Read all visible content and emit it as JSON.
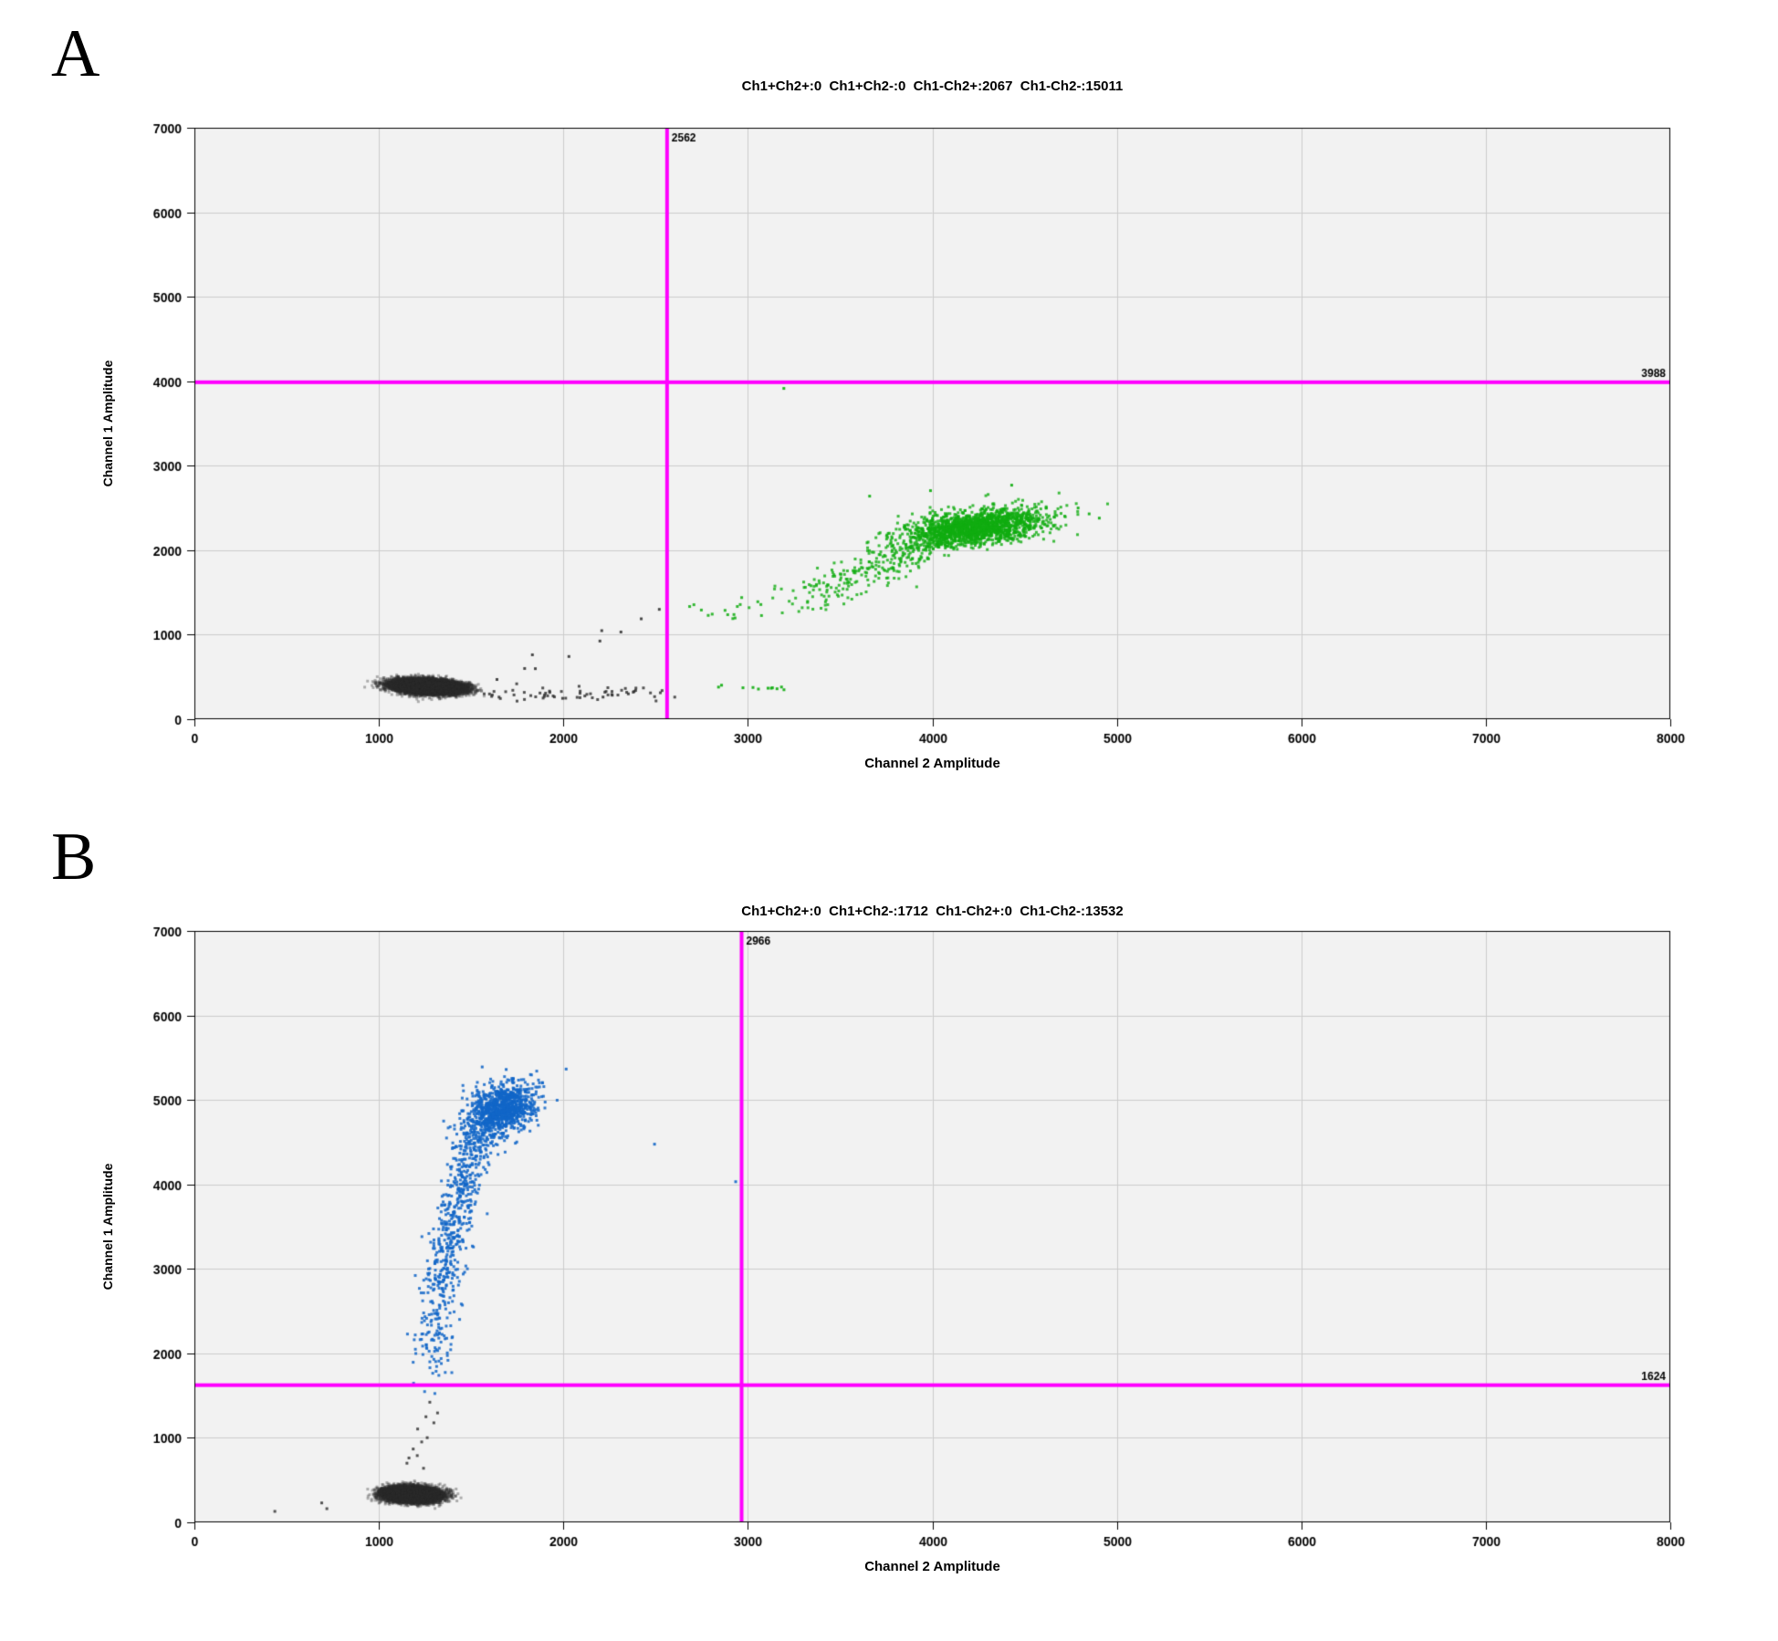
{
  "figure": {
    "panel_a_letter": "A",
    "panel_b_letter": "B"
  },
  "chart_data": [
    {
      "type": "scatter",
      "panel": "A",
      "title": "Ch1+Ch2+:0  Ch1+Ch2-:0  Ch1-Ch2+:2067  Ch1-Ch2-:15011",
      "xlabel": "Channel 2 Amplitude",
      "ylabel": "Channel 1 Amplitude",
      "xlim": [
        0,
        8000
      ],
      "ylim": [
        0,
        7000
      ],
      "xticks": [
        0,
        1000,
        2000,
        3000,
        4000,
        5000,
        6000,
        7000,
        8000
      ],
      "yticks": [
        0,
        1000,
        2000,
        3000,
        4000,
        5000,
        6000,
        7000
      ],
      "grid": true,
      "plot_bg": "#f2f2f2",
      "grid_color": "#cccccc",
      "threshold_color": "#ff00ff",
      "threshold_x": {
        "value": 2562,
        "label": "2562"
      },
      "threshold_y": {
        "value": 3988,
        "label": "3988"
      },
      "counts": {
        "Ch1+Ch2+": 0,
        "Ch1+Ch2-": 0,
        "Ch1-Ch2+": 2067,
        "Ch1-Ch2-": 15011
      },
      "series": [
        {
          "name": "ch1neg-ch2neg-negative-droplets",
          "color": "#2b2b2b",
          "clusters": [
            {
              "kind": "gauss",
              "count": 14200,
              "cx": 1265,
              "cy": 385,
              "sx": 88,
              "sy": 40,
              "rho": -0.25,
              "alpha": 0.35
            },
            {
              "kind": "band",
              "count": 60,
              "p0": [
                1500,
                290
              ],
              "p2": [
                2540,
                310
              ],
              "jx": 30,
              "jy": 45,
              "alpha": 0.8
            },
            {
              "kind": "points",
              "alpha": 0.85,
              "pts": [
                [
                  1640,
                  470
                ],
                [
                  1790,
                  600
                ],
                [
                  1848,
                  598
                ],
                [
                  1832,
                  762
                ],
                [
                  2030,
                  742
                ],
                [
                  2198,
                  925
                ],
                [
                  2312,
                  1032
                ],
                [
                  2208,
                  1048
                ],
                [
                  2422,
                  1188
                ],
                [
                  2520,
                  1300
                ],
                [
                  1996,
                  247
                ],
                [
                  2215,
                  262
                ],
                [
                  2352,
                  300
                ],
                [
                  1925,
                  332
                ]
              ]
            }
          ]
        },
        {
          "name": "ch1neg-ch2pos-positive-droplets",
          "color": "#10ad10",
          "clusters": [
            {
              "kind": "gauss",
              "count": 1720,
              "cx": 4235,
              "cy": 2270,
              "sx": 195,
              "sy": 112,
              "rho": 0.45,
              "alpha": 0.8
            },
            {
              "kind": "band",
              "count": 240,
              "p0": [
                3240,
                1340
              ],
              "p1": [
                3560,
                1650
              ],
              "p2": [
                3980,
                2080
              ],
              "jx": 120,
              "jy": 90,
              "tpow": 0.75,
              "alpha": 0.8
            },
            {
              "kind": "band",
              "count": 16,
              "p0": [
                2660,
                1210
              ],
              "p2": [
                3210,
                1380
              ],
              "jx": 70,
              "jy": 70,
              "alpha": 0.85
            },
            {
              "kind": "band",
              "count": 11,
              "p0": [
                2600,
                365
              ],
              "p2": [
                3400,
                385
              ],
              "jx": 40,
              "jy": 30,
              "alpha": 0.9
            },
            {
              "kind": "points",
              "alpha": 0.9,
              "pts": [
                [
                  3195,
                  3915
                ],
                [
                  3990,
                  2705
                ],
                [
                  3660,
                  2640
                ],
                [
                  4430,
                  2770
                ],
                [
                  4850,
                  2430
                ],
                [
                  4905,
                  2380
                ],
                [
                  4790,
                  2500
                ]
              ]
            }
          ]
        }
      ]
    },
    {
      "type": "scatter",
      "panel": "B",
      "title": "Ch1+Ch2+:0  Ch1+Ch2-:1712  Ch1-Ch2+:0  Ch1-Ch2-:13532",
      "xlabel": "Channel 2 Amplitude",
      "ylabel": "Channel 1 Amplitude",
      "xlim": [
        0,
        8000
      ],
      "ylim": [
        0,
        7000
      ],
      "xticks": [
        0,
        1000,
        2000,
        3000,
        4000,
        5000,
        6000,
        7000,
        8000
      ],
      "yticks": [
        0,
        1000,
        2000,
        3000,
        4000,
        5000,
        6000,
        7000
      ],
      "grid": true,
      "plot_bg": "#f2f2f2",
      "grid_color": "#cccccc",
      "threshold_color": "#ff00ff",
      "threshold_x": {
        "value": 2966,
        "label": "2966"
      },
      "threshold_y": {
        "value": 1624,
        "label": "1624"
      },
      "counts": {
        "Ch1+Ch2+": 0,
        "Ch1+Ch2-": 1712,
        "Ch1-Ch2+": 0,
        "Ch1-Ch2-": 13532
      },
      "series": [
        {
          "name": "ch1neg-ch2neg-negative-droplets",
          "color": "#2b2b2b",
          "clusters": [
            {
              "kind": "gauss",
              "count": 12800,
              "cx": 1180,
              "cy": 330,
              "sx": 68,
              "sy": 42,
              "rho": -0.1,
              "alpha": 0.35
            },
            {
              "kind": "points",
              "alpha": 0.8,
              "pts": [
                [
                  436,
                  130
                ],
                [
                  690,
                  230
                ],
                [
                  718,
                  162
                ],
                [
                  1152,
                  700
                ],
                [
                  1208,
                  790
                ],
                [
                  1232,
                  952
                ],
                [
                  1186,
                  868
                ],
                [
                  1262,
                  1002
                ],
                [
                  1298,
                  1178
                ],
                [
                  1276,
                  1422
                ],
                [
                  1318,
                  1295
                ],
                [
                  1242,
                  640
                ],
                [
                  1163,
                  762
                ],
                [
                  1210,
                  1105
                ],
                [
                  1255,
                  1250
                ]
              ]
            }
          ]
        },
        {
          "name": "ch1pos-ch2neg-positive-droplets",
          "color": "#1266c8",
          "clusters": [
            {
              "kind": "gauss",
              "count": 1020,
              "cx": 1662,
              "cy": 4890,
              "sx": 92,
              "sy": 148,
              "rho": 0.3,
              "alpha": 0.85
            },
            {
              "kind": "band",
              "count": 640,
              "p0": [
                1282,
                1660
              ],
              "p1": [
                1315,
                3150
              ],
              "p2": [
                1545,
                4650
              ],
              "jx": 55,
              "jy": 120,
              "tpow": 0.65,
              "alpha": 0.85
            },
            {
              "kind": "points",
              "alpha": 0.9,
              "pts": [
                [
                  2015,
                  5365
                ],
                [
                  2494,
                  4476
                ],
                [
                  2934,
                  4032
                ],
                [
                  1560,
                  5390
                ],
                [
                  1690,
                  5360
                ]
              ]
            }
          ]
        }
      ]
    }
  ]
}
